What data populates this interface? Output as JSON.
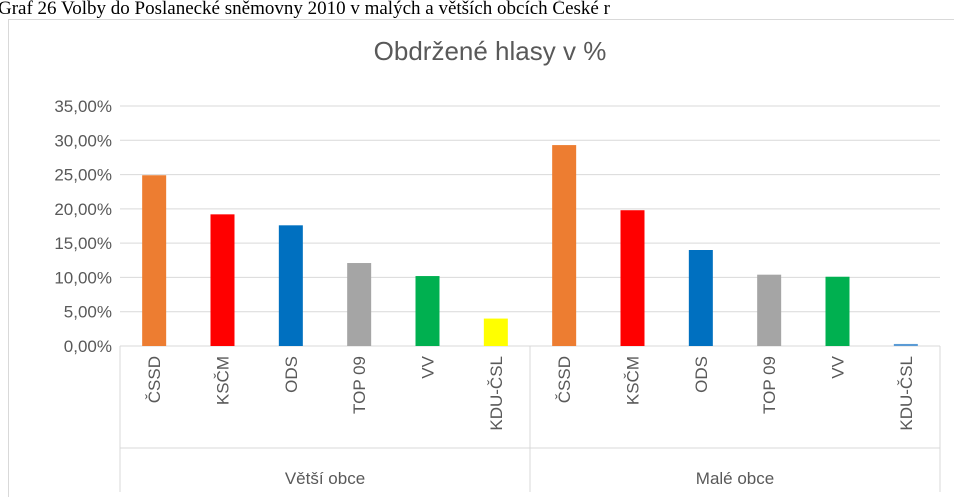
{
  "caption": "Graf 26 Volby do Poslanecké sněmovny 2010 v malých a větších obcích České r",
  "chart_data": {
    "type": "bar",
    "title": "Obdržené hlasy v %",
    "categories": [
      "ČSSD",
      "KSČM",
      "ODS",
      "TOP 09",
      "VV",
      "KDU-ČSL",
      "ČSSD",
      "KSČM",
      "ODS",
      "TOP 09",
      "VV",
      "KDU-ČSL"
    ],
    "groups": [
      "Větší obce",
      "Malé obce"
    ],
    "values": [
      24.9,
      19.2,
      17.6,
      12.1,
      10.2,
      4.0,
      29.3,
      19.8,
      14.0,
      10.4,
      10.1,
      0.3
    ],
    "colors": [
      "#ed7d31",
      "#ff0000",
      "#0070c0",
      "#a5a5a5",
      "#00b050",
      "#ffff00",
      "#ed7d31",
      "#ff0000",
      "#0070c0",
      "#a5a5a5",
      "#00b050",
      "#5b9bd5"
    ],
    "ylim": [
      0,
      35
    ],
    "yticks": [
      {
        "value": 0,
        "label": "0,00%"
      },
      {
        "value": 5,
        "label": "5,00%"
      },
      {
        "value": 10,
        "label": "10,00%"
      },
      {
        "value": 15,
        "label": "15,00%"
      },
      {
        "value": 20,
        "label": "20,00%"
      },
      {
        "value": 25,
        "label": "25,00%"
      },
      {
        "value": 30,
        "label": "30,00%"
      },
      {
        "value": 35,
        "label": "35,00%"
      }
    ],
    "grid": true
  }
}
